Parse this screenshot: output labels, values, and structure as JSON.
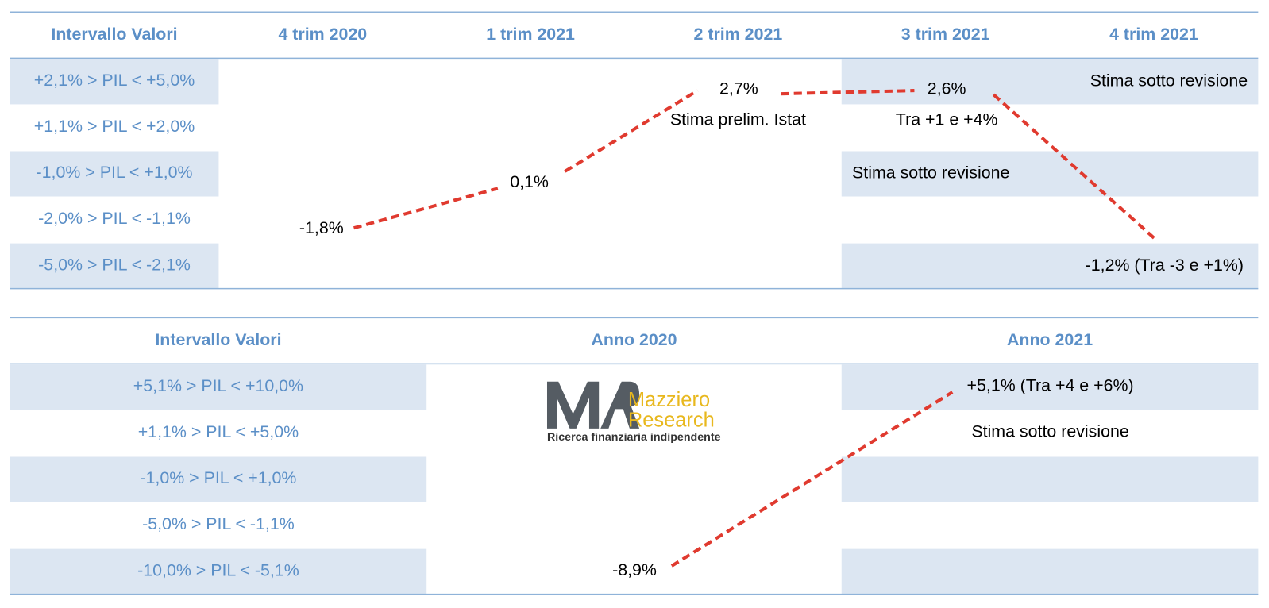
{
  "top_table": {
    "header": [
      "Intervallo Valori",
      "4 trim 2020",
      "1 trim 2021",
      "2 trim 2021",
      "3 trim 2021",
      "4 trim 2021"
    ],
    "row_labels": [
      "+2,1% > PIL < +5,0%",
      "+1,1% > PIL < +2,0%",
      "-1,0% > PIL < +1,0%",
      "-2,0% > PIL < -1,1%",
      "-5,0% > PIL < -2,1%"
    ],
    "annotations": [
      "-1,8%",
      "0,1%",
      "2,7%",
      "Stima prelim. Istat",
      "2,6%",
      "Tra +1 e +4%",
      "Stima sotto revisione",
      "Stima sotto revisione",
      "-1,2% (Tra -3 e +1%)"
    ]
  },
  "bottom_table": {
    "header": [
      "Intervallo Valori",
      "Anno 2020",
      "Anno 2021"
    ],
    "row_labels": [
      "+5,1% > PIL < +10,0%",
      "+1,1% > PIL < +5,0%",
      "-1,0% > PIL < +1,0%",
      "-5,0% > PIL < -1,1%",
      "-10,0% > PIL < -5,1%"
    ],
    "annotations": [
      "+5,1% (Tra +4 e +6%)",
      "Stima sotto revisione",
      "-8,9%"
    ]
  },
  "logo": {
    "line1": "Mazziero",
    "line2": "Research",
    "tagline": "Ricerca finanziaria indipendente"
  }
}
